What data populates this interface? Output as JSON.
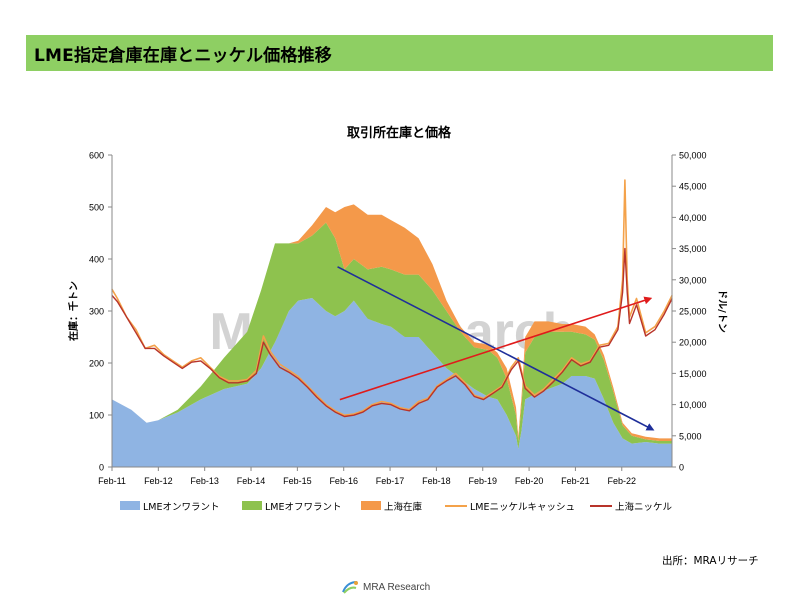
{
  "header": {
    "title": "LME指定倉庫在庫とニッケル価格推移"
  },
  "source_note": "出所：MRAリサーチ",
  "footer": {
    "logo_text": "MRA Research"
  },
  "watermark": "MRA Research",
  "colors": {
    "header_bg": "#8ecf63",
    "lme_on_warrant": "#8fb4e3",
    "lme_off_warrant": "#8ec24e",
    "shanghai_stock": "#f4994a",
    "lme_cash": "#f4a24a",
    "shanghai_nickel": "#b8342a",
    "arrow_blue": "#1f2f9a",
    "arrow_red": "#e01b1b"
  },
  "chart_data": {
    "type": "area",
    "title": "取引所在庫と価格",
    "ylabel_left": "在庫：千トン",
    "ylabel_right": "ドル/トン",
    "x_categories": [
      "Feb-11",
      "Feb-12",
      "Feb-13",
      "Feb-14",
      "Feb-15",
      "Feb-16",
      "Feb-17",
      "Feb-18",
      "Feb-19",
      "Feb-20",
      "Feb-21",
      "Feb-22"
    ],
    "x_range": [
      2011.083,
      2023.167
    ],
    "y_left": {
      "min": 0,
      "max": 600,
      "ticks": [
        "0",
        "100",
        "200",
        "300",
        "400",
        "500",
        "600"
      ]
    },
    "y_right": {
      "min": 0,
      "max": 50000,
      "ticks": [
        "0",
        "5,000",
        "10,000",
        "15,000",
        "20,000",
        "25,000",
        "30,000",
        "35,000",
        "40,000",
        "45,000",
        "50,000"
      ]
    },
    "legend_position": "bottom",
    "series": [
      {
        "name": "LMEオンワラント",
        "type": "area",
        "axis": "left",
        "x": [
          2011.08,
          2011.5,
          2011.83,
          2012.08,
          2012.5,
          2013.0,
          2013.5,
          2014.0,
          2014.3,
          2014.6,
          2014.9,
          2015.1,
          2015.4,
          2015.7,
          2015.9,
          2016.1,
          2016.3,
          2016.6,
          2016.9,
          2017.1,
          2017.4,
          2017.7,
          2018.0,
          2018.3,
          2018.6,
          2018.9,
          2019.2,
          2019.4,
          2019.6,
          2019.8,
          2019.85,
          2019.92,
          2020.0,
          2020.2,
          2020.5,
          2020.8,
          2021.0,
          2021.3,
          2021.5,
          2021.7,
          2021.9,
          2022.1,
          2022.3,
          2022.6,
          2022.9,
          2023.17
        ],
        "y": [
          130,
          110,
          85,
          90,
          105,
          130,
          150,
          160,
          190,
          240,
          300,
          320,
          325,
          300,
          290,
          300,
          320,
          285,
          275,
          270,
          250,
          250,
          220,
          190,
          170,
          150,
          135,
          130,
          100,
          60,
          35,
          70,
          130,
          140,
          150,
          160,
          175,
          175,
          170,
          130,
          85,
          55,
          45,
          48,
          45,
          45
        ]
      },
      {
        "name": "LMEオフワラント",
        "type": "area",
        "axis": "left",
        "x": [
          2011.08,
          2011.5,
          2011.83,
          2012.08,
          2012.5,
          2013.0,
          2013.5,
          2014.0,
          2014.3,
          2014.6,
          2014.9,
          2015.1,
          2015.4,
          2015.7,
          2015.9,
          2016.1,
          2016.3,
          2016.6,
          2016.9,
          2017.1,
          2017.4,
          2017.7,
          2018.0,
          2018.3,
          2018.6,
          2018.9,
          2019.2,
          2019.4,
          2019.6,
          2019.8,
          2019.85,
          2019.92,
          2020.0,
          2020.2,
          2020.5,
          2020.8,
          2021.0,
          2021.3,
          2021.5,
          2021.7,
          2021.9,
          2022.1,
          2022.3,
          2022.6,
          2022.9,
          2023.17
        ],
        "y": [
          0,
          0,
          0,
          0,
          5,
          25,
          60,
          100,
          150,
          190,
          130,
          110,
          120,
          170,
          150,
          80,
          80,
          95,
          110,
          110,
          120,
          120,
          120,
          110,
          90,
          80,
          90,
          80,
          70,
          40,
          15,
          50,
          90,
          110,
          110,
          100,
          85,
          80,
          75,
          75,
          60,
          25,
          15,
          5,
          5,
          5
        ]
      },
      {
        "name": "上海在庫",
        "type": "area",
        "axis": "left",
        "x": [
          2011.08,
          2011.5,
          2011.83,
          2012.08,
          2012.5,
          2013.0,
          2013.5,
          2014.0,
          2014.3,
          2014.6,
          2014.9,
          2015.1,
          2015.4,
          2015.7,
          2015.9,
          2016.1,
          2016.3,
          2016.6,
          2016.9,
          2017.1,
          2017.4,
          2017.7,
          2018.0,
          2018.3,
          2018.6,
          2018.9,
          2019.2,
          2019.4,
          2019.6,
          2019.8,
          2019.85,
          2019.92,
          2020.0,
          2020.2,
          2020.5,
          2020.8,
          2021.0,
          2021.3,
          2021.5,
          2021.7,
          2021.9,
          2022.1,
          2022.3,
          2022.6,
          2022.9,
          2023.17
        ],
        "y": [
          0,
          0,
          0,
          0,
          0,
          0,
          0,
          0,
          0,
          0,
          0,
          5,
          20,
          30,
          50,
          120,
          105,
          105,
          100,
          95,
          90,
          70,
          50,
          20,
          10,
          10,
          10,
          10,
          20,
          15,
          10,
          15,
          30,
          30,
          20,
          15,
          15,
          15,
          10,
          10,
          8,
          5,
          5,
          5,
          5,
          5
        ]
      },
      {
        "name": "LMEニッケルキャッシュ",
        "type": "line",
        "axis": "right",
        "x": [
          2011.08,
          2011.2,
          2011.4,
          2011.6,
          2011.8,
          2012.0,
          2012.2,
          2012.4,
          2012.6,
          2012.8,
          2013.0,
          2013.2,
          2013.4,
          2013.6,
          2013.8,
          2014.0,
          2014.2,
          2014.35,
          2014.5,
          2014.7,
          2014.9,
          2015.1,
          2015.3,
          2015.5,
          2015.7,
          2015.9,
          2016.1,
          2016.3,
          2016.5,
          2016.7,
          2016.9,
          2017.1,
          2017.3,
          2017.5,
          2017.7,
          2017.9,
          2018.1,
          2018.3,
          2018.5,
          2018.7,
          2018.9,
          2019.1,
          2019.3,
          2019.5,
          2019.7,
          2019.85,
          2020.0,
          2020.2,
          2020.4,
          2020.6,
          2020.8,
          2021.0,
          2021.2,
          2021.4,
          2021.6,
          2021.8,
          2022.0,
          2022.1,
          2022.15,
          2022.2,
          2022.25,
          2022.4,
          2022.6,
          2022.8,
          2023.0,
          2023.17
        ],
        "y": [
          28500,
          27000,
          24000,
          22000,
          19000,
          19500,
          18000,
          17000,
          16000,
          17000,
          17500,
          16000,
          14500,
          13800,
          13800,
          14000,
          15500,
          21000,
          18500,
          16500,
          15500,
          14500,
          13000,
          11500,
          10000,
          9000,
          8300,
          8500,
          9000,
          10000,
          10500,
          10200,
          9500,
          9200,
          10500,
          11000,
          13000,
          14000,
          15000,
          13500,
          11500,
          11000,
          12000,
          13000,
          16000,
          17500,
          13000,
          11500,
          12500,
          14000,
          15500,
          17500,
          16500,
          17000,
          19500,
          19800,
          22500,
          30000,
          46000,
          30000,
          24000,
          27000,
          21500,
          22500,
          25000,
          27500
        ]
      },
      {
        "name": "上海ニッケル",
        "type": "line",
        "axis": "right",
        "x": [
          2011.08,
          2011.2,
          2011.4,
          2011.6,
          2011.8,
          2012.0,
          2012.2,
          2012.4,
          2012.6,
          2012.8,
          2013.0,
          2013.2,
          2013.4,
          2013.6,
          2013.8,
          2014.0,
          2014.2,
          2014.35,
          2014.5,
          2014.7,
          2014.9,
          2015.1,
          2015.3,
          2015.5,
          2015.7,
          2015.9,
          2016.1,
          2016.3,
          2016.5,
          2016.7,
          2016.9,
          2017.1,
          2017.3,
          2017.5,
          2017.7,
          2017.9,
          2018.1,
          2018.3,
          2018.5,
          2018.7,
          2018.9,
          2019.1,
          2019.3,
          2019.5,
          2019.7,
          2019.85,
          2020.0,
          2020.2,
          2020.4,
          2020.6,
          2020.8,
          2021.0,
          2021.2,
          2021.4,
          2021.6,
          2021.8,
          2022.0,
          2022.1,
          2022.15,
          2022.2,
          2022.25,
          2022.4,
          2022.6,
          2022.8,
          2023.0,
          2023.17
        ],
        "y": [
          27500,
          26500,
          24000,
          21500,
          19000,
          19000,
          17800,
          16800,
          15800,
          16800,
          17000,
          15800,
          14300,
          13500,
          13500,
          13800,
          15000,
          20000,
          18000,
          16000,
          15200,
          14200,
          12800,
          11200,
          9800,
          8800,
          8100,
          8300,
          8800,
          9800,
          10200,
          10000,
          9300,
          9000,
          10200,
          10800,
          12800,
          13800,
          14600,
          13200,
          11300,
          10800,
          11800,
          12800,
          15600,
          17000,
          12600,
          11200,
          12200,
          13600,
          15200,
          17200,
          16200,
          16800,
          19200,
          19500,
          22000,
          28000,
          35000,
          28000,
          23000,
          26000,
          21000,
          22000,
          24500,
          27000
        ]
      }
    ],
    "annotations": [
      {
        "type": "arrow",
        "color": "blue",
        "from": [
          2015.95,
          385
        ],
        "to": [
          2022.75,
          72
        ],
        "axis": "left"
      },
      {
        "type": "arrow",
        "color": "red",
        "from": [
          2016.0,
          10800
        ],
        "to": [
          2022.7,
          27000
        ],
        "axis": "right"
      }
    ]
  }
}
